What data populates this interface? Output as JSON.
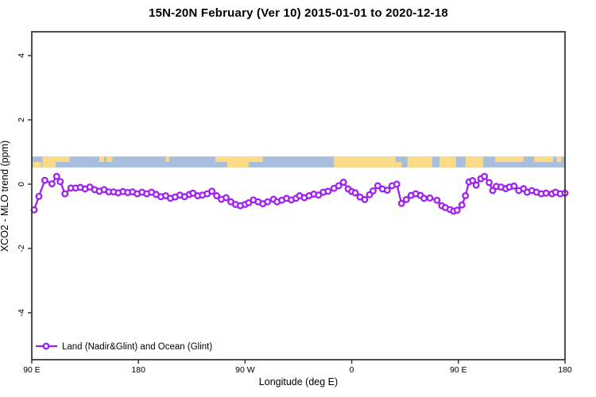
{
  "title": "15N-20N February (Ver 10)   2015-01-01 to 2020-12-18",
  "axes": {
    "x": {
      "label": "Longitude (deg E)",
      "range": [
        90,
        540
      ],
      "ticks": [
        {
          "pos": 90,
          "label": "90 E"
        },
        {
          "pos": 180,
          "label": "180"
        },
        {
          "pos": 270,
          "label": "90 W"
        },
        {
          "pos": 360,
          "label": "0"
        },
        {
          "pos": 450,
          "label": "90 E"
        },
        {
          "pos": 540,
          "label": "180"
        }
      ]
    },
    "y": {
      "label": "XCO2 - MLO trend (ppm)",
      "range": [
        -5.46,
        4.74
      ],
      "ticks": [
        {
          "pos": -4,
          "label": "-4"
        },
        {
          "pos": -2,
          "label": "-2"
        },
        {
          "pos": 0,
          "label": "0"
        },
        {
          "pos": 2,
          "label": "2"
        },
        {
          "pos": 4,
          "label": "4"
        }
      ]
    }
  },
  "legend": {
    "label": "Land (Nadir&Glint) and Ocean (Glint)",
    "series_color": "#A020F0"
  },
  "colors": {
    "series": "#A020F0",
    "ocean_band": "#A8BEDC",
    "land_band": "#FBDB87",
    "axis": "#3a3a3a",
    "text": "#000000"
  },
  "map_band": {
    "description": "land/ocean strip for 15N-20N latitude belt",
    "value_range": [
      0.52,
      0.86
    ],
    "patches": [
      {
        "lon": [
          91,
          98
        ],
        "part": "bottom"
      },
      {
        "lon": [
          99,
          110
        ],
        "part": "full"
      },
      {
        "lon": [
          110,
          122
        ],
        "part": "top"
      },
      {
        "lon": [
          147,
          151
        ],
        "part": "top"
      },
      {
        "lon": [
          153,
          158
        ],
        "part": "top"
      },
      {
        "lon": [
          203,
          206
        ],
        "part": "top"
      },
      {
        "lon": [
          245,
          255
        ],
        "part": "top"
      },
      {
        "lon": [
          255,
          273
        ],
        "part": "full"
      },
      {
        "lon": [
          273,
          285
        ],
        "part": "top"
      },
      {
        "lon": [
          345,
          397
        ],
        "part": "full"
      },
      {
        "lon": [
          397,
          402
        ],
        "part": "bottom"
      },
      {
        "lon": [
          407,
          428
        ],
        "part": "full"
      },
      {
        "lon": [
          434,
          448
        ],
        "part": "full"
      },
      {
        "lon": [
          456,
          471
        ],
        "part": "full"
      },
      {
        "lon": [
          481,
          505
        ],
        "part": "top"
      },
      {
        "lon": [
          514,
          530
        ],
        "part": "top"
      },
      {
        "lon": [
          533,
          537
        ],
        "part": "top"
      }
    ]
  },
  "chart_data": {
    "type": "line",
    "title": "15N-20N February (Ver 10)   2015-01-01 to 2020-12-18",
    "xlabel": "Longitude (deg E)",
    "ylabel": "XCO2 - MLO trend (ppm)",
    "xlim": [
      90,
      540
    ],
    "ylim": [
      -5.46,
      4.74
    ],
    "grid": false,
    "legend_position": "bottom-left",
    "series": [
      {
        "name": "Land (Nadir&Glint) and Ocean (Glint)",
        "color": "#A020F0",
        "marker": "open-circle",
        "points": [
          [
            92,
            -0.8
          ],
          [
            96,
            -0.38
          ],
          [
            101,
            0.12
          ],
          [
            107,
            0.01
          ],
          [
            111,
            0.24
          ],
          [
            114,
            0.08
          ],
          [
            118,
            -0.3
          ],
          [
            123,
            -0.12
          ],
          [
            127,
            -0.12
          ],
          [
            131,
            -0.1
          ],
          [
            135,
            -0.15
          ],
          [
            139,
            -0.09
          ],
          [
            143,
            -0.17
          ],
          [
            147,
            -0.22
          ],
          [
            151,
            -0.17
          ],
          [
            155,
            -0.24
          ],
          [
            159,
            -0.24
          ],
          [
            163,
            -0.27
          ],
          [
            167,
            -0.23
          ],
          [
            171,
            -0.26
          ],
          [
            175,
            -0.24
          ],
          [
            179,
            -0.3
          ],
          [
            183,
            -0.25
          ],
          [
            187,
            -0.3
          ],
          [
            191,
            -0.25
          ],
          [
            195,
            -0.32
          ],
          [
            199,
            -0.39
          ],
          [
            203,
            -0.36
          ],
          [
            207,
            -0.44
          ],
          [
            211,
            -0.4
          ],
          [
            215,
            -0.34
          ],
          [
            219,
            -0.39
          ],
          [
            223,
            -0.32
          ],
          [
            226,
            -0.28
          ],
          [
            230,
            -0.36
          ],
          [
            234,
            -0.34
          ],
          [
            238,
            -0.3
          ],
          [
            242,
            -0.22
          ],
          [
            246,
            -0.36
          ],
          [
            250,
            -0.47
          ],
          [
            254,
            -0.42
          ],
          [
            258,
            -0.55
          ],
          [
            262,
            -0.63
          ],
          [
            266,
            -0.67
          ],
          [
            270,
            -0.63
          ],
          [
            273,
            -0.58
          ],
          [
            277,
            -0.49
          ],
          [
            281,
            -0.55
          ],
          [
            285,
            -0.61
          ],
          [
            289,
            -0.55
          ],
          [
            294,
            -0.47
          ],
          [
            297,
            -0.55
          ],
          [
            301,
            -0.5
          ],
          [
            305,
            -0.44
          ],
          [
            309,
            -0.49
          ],
          [
            313,
            -0.44
          ],
          [
            316,
            -0.36
          ],
          [
            320,
            -0.42
          ],
          [
            324,
            -0.36
          ],
          [
            328,
            -0.31
          ],
          [
            332,
            -0.34
          ],
          [
            336,
            -0.25
          ],
          [
            340,
            -0.22
          ],
          [
            345,
            -0.13
          ],
          [
            349,
            -0.05
          ],
          [
            353,
            0.06
          ],
          [
            357,
            -0.15
          ],
          [
            360,
            -0.23
          ],
          [
            363,
            -0.27
          ],
          [
            367,
            -0.4
          ],
          [
            371,
            -0.48
          ],
          [
            375,
            -0.33
          ],
          [
            378,
            -0.21
          ],
          [
            382,
            -0.05
          ],
          [
            386,
            -0.15
          ],
          [
            390,
            -0.19
          ],
          [
            394,
            -0.05
          ],
          [
            398,
            0.0
          ],
          [
            402,
            -0.6
          ],
          [
            406,
            -0.48
          ],
          [
            410,
            -0.35
          ],
          [
            414,
            -0.3
          ],
          [
            418,
            -0.35
          ],
          [
            421,
            -0.44
          ],
          [
            426,
            -0.43
          ],
          [
            432,
            -0.5
          ],
          [
            436,
            -0.67
          ],
          [
            439,
            -0.73
          ],
          [
            443,
            -0.79
          ],
          [
            446,
            -0.84
          ],
          [
            449,
            -0.81
          ],
          [
            453,
            -0.65
          ],
          [
            456,
            -0.36
          ],
          [
            459,
            0.07
          ],
          [
            462,
            0.11
          ],
          [
            465,
            -0.03
          ],
          [
            469,
            0.17
          ],
          [
            472,
            0.24
          ],
          [
            476,
            0.05
          ],
          [
            479,
            -0.2
          ],
          [
            482,
            -0.07
          ],
          [
            486,
            -0.09
          ],
          [
            490,
            -0.14
          ],
          [
            493,
            -0.09
          ],
          [
            497,
            -0.06
          ],
          [
            501,
            -0.2
          ],
          [
            505,
            -0.14
          ],
          [
            508,
            -0.25
          ],
          [
            512,
            -0.2
          ],
          [
            516,
            -0.25
          ],
          [
            520,
            -0.3
          ],
          [
            524,
            -0.28
          ],
          [
            529,
            -0.3
          ],
          [
            532,
            -0.25
          ],
          [
            536,
            -0.3
          ],
          [
            540,
            -0.28
          ]
        ]
      }
    ]
  }
}
